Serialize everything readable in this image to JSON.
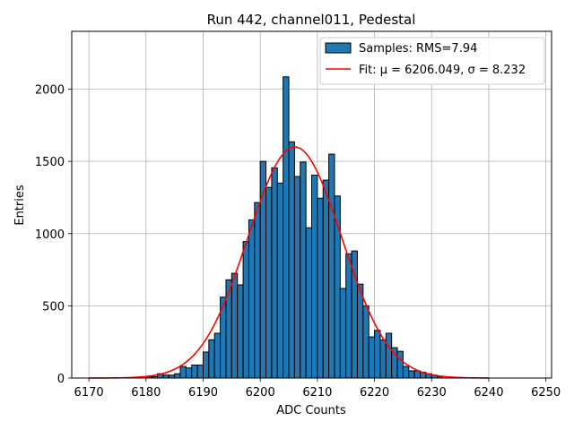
{
  "chart_data": {
    "type": "bar",
    "title": "Run 442, channel011, Pedestal",
    "xlabel": "ADC Counts",
    "ylabel": "Entries",
    "xlim": [
      6167,
      6251
    ],
    "ylim": [
      0,
      2400
    ],
    "xticks": [
      6170,
      6180,
      6190,
      6200,
      6210,
      6220,
      6230,
      6240,
      6250
    ],
    "yticks": [
      0,
      500,
      1000,
      1500,
      2000
    ],
    "grid": true,
    "legend_position": "upper right",
    "colors": {
      "bars": "#1f77b4",
      "fit": "#ff0000",
      "grid": "#b0b0b0"
    },
    "histogram": {
      "name": "Samples: RMS=7.94",
      "bin_width": 1,
      "bin_left_edges": [
        6180,
        6181,
        6182,
        6183,
        6184,
        6185,
        6186,
        6187,
        6188,
        6189,
        6190,
        6191,
        6192,
        6193,
        6194,
        6195,
        6196,
        6197,
        6198,
        6199,
        6200,
        6201,
        6202,
        6203,
        6204,
        6205,
        6206,
        6207,
        6208,
        6209,
        6210,
        6211,
        6212,
        6213,
        6214,
        6215,
        6216,
        6217,
        6218,
        6219,
        6220,
        6221,
        6222,
        6223,
        6224,
        6225,
        6226,
        6227,
        6228,
        6229,
        6230,
        6231
      ],
      "counts": [
        10,
        10,
        30,
        20,
        20,
        30,
        80,
        70,
        90,
        90,
        180,
        265,
        310,
        560,
        680,
        725,
        645,
        945,
        1095,
        1215,
        1500,
        1320,
        1455,
        1350,
        2085,
        1635,
        1395,
        1495,
        1040,
        1405,
        1245,
        1370,
        1550,
        1260,
        620,
        860,
        880,
        650,
        500,
        285,
        330,
        265,
        310,
        210,
        185,
        80,
        50,
        50,
        40,
        30,
        20,
        10
      ]
    },
    "fit": {
      "name": "Fit: μ = 6206.049, σ = 8.232",
      "mu": 6206.049,
      "sigma": 8.232,
      "peak": 1600,
      "x_range": [
        6170,
        6240
      ]
    }
  }
}
